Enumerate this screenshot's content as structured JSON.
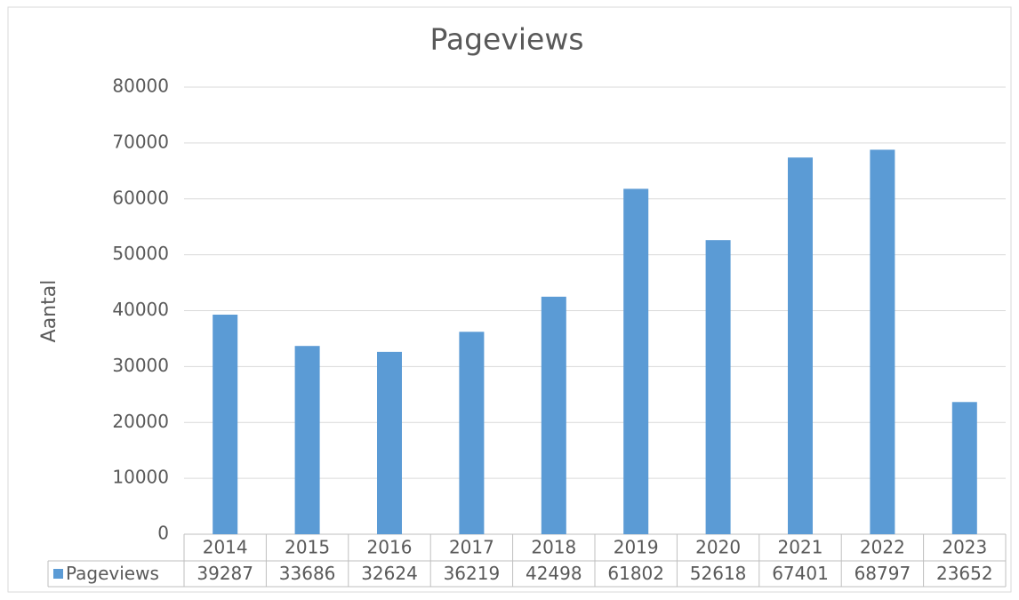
{
  "chart_data": {
    "type": "bar",
    "title": "Pageviews",
    "y_label": "Aantal",
    "categories": [
      "2014",
      "2015",
      "2016",
      "2017",
      "2018",
      "2019",
      "2020",
      "2021",
      "2022",
      "2023"
    ],
    "series": [
      {
        "name": "Pageviews",
        "color": "#5b9bd5",
        "values": [
          39287,
          33686,
          32624,
          36219,
          42498,
          61802,
          52618,
          67401,
          68797,
          23652
        ]
      }
    ],
    "ylim": [
      0,
      80000
    ],
    "yticks": [
      0,
      10000,
      20000,
      30000,
      40000,
      50000,
      60000,
      70000,
      80000
    ],
    "grid": true,
    "data_table": true
  }
}
